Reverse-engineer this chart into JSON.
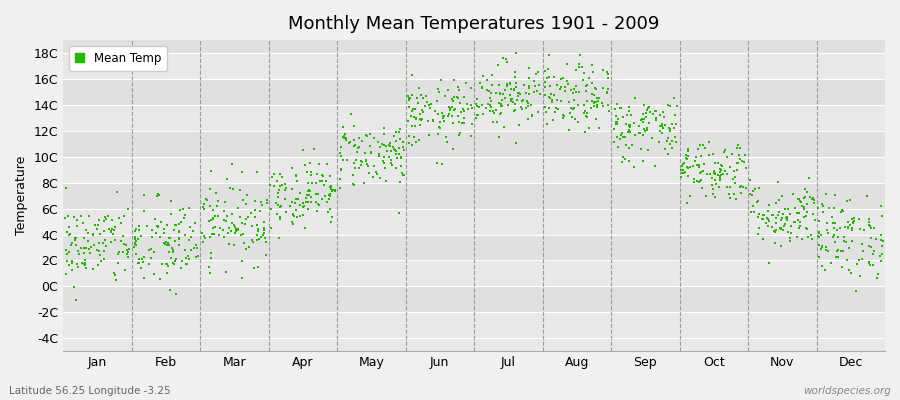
{
  "title": "Monthly Mean Temperatures 1901 - 2009",
  "ylabel": "Temperature",
  "xlabel_labels": [
    "Jan",
    "Feb",
    "Mar",
    "Apr",
    "May",
    "Jun",
    "Jul",
    "Aug",
    "Sep",
    "Oct",
    "Nov",
    "Dec"
  ],
  "ytick_labels": [
    "-4C",
    "-2C",
    "0C",
    "2C",
    "4C",
    "6C",
    "8C",
    "10C",
    "12C",
    "14C",
    "16C",
    "18C"
  ],
  "ytick_values": [
    -4,
    -2,
    0,
    2,
    4,
    6,
    8,
    10,
    12,
    14,
    16,
    18
  ],
  "ylim": [
    -5.0,
    19.0
  ],
  "dot_color": "#22bb00",
  "background_color": "#f0f0f0",
  "plot_bg_color": "#e8e8e8",
  "legend_label": "Mean Temp",
  "footer_left": "Latitude 56.25 Longitude -3.25",
  "footer_right": "worldspecies.org",
  "monthly_means": [
    3.2,
    3.2,
    5.0,
    7.2,
    10.2,
    13.2,
    14.8,
    14.5,
    12.2,
    9.0,
    5.5,
    3.8
  ],
  "monthly_stds": [
    1.6,
    1.8,
    1.6,
    1.3,
    1.3,
    1.3,
    1.3,
    1.3,
    1.3,
    1.2,
    1.3,
    1.6
  ],
  "n_years": 109,
  "seed": 42,
  "marker_size": 2.5,
  "dpi": 100,
  "figsize": [
    9.0,
    4.0
  ],
  "grid_band_colors": [
    "#e8e8e8",
    "#e0e0e0"
  ]
}
